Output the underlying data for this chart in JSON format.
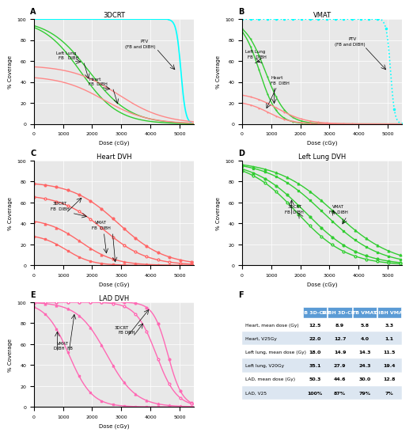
{
  "title_A": "3DCRT",
  "title_B": "VMAT",
  "title_C": "Heart DVH",
  "title_D": "Left Lung DVH",
  "title_E": "LAD DVH",
  "bg_color": "#e8e8e8",
  "colors": {
    "cyan": "#00FFFF",
    "green": "#00CC00",
    "red": "#FF6666",
    "pink": "#FF69B4"
  },
  "table_header_bg": "#5b9bd5",
  "table_header_text": "white",
  "table_row_bg1": "white",
  "table_row_bg2": "#dce6f1",
  "table_data": {
    "headers": [
      "",
      "FB 3D-CRT",
      "DIBH 3D-CRT",
      "FB VMAT",
      "DIBH VMAT"
    ],
    "rows": [
      [
        "Heart, mean dose (Gy)",
        "12.5",
        "8.9",
        "5.8",
        "3.3"
      ],
      [
        "Heart, V25Gy",
        "22.0",
        "12.7",
        "4.0",
        "1.1"
      ],
      [
        "Left lung, mean dose (Gy)",
        "18.0",
        "14.9",
        "14.3",
        "11.5"
      ],
      [
        "Left lung, V20Gy",
        "35.1",
        "27.9",
        "24.3",
        "19.4"
      ],
      [
        "LAD, mean dose (Gy)",
        "50.3",
        "44.6",
        "30.0",
        "12.8"
      ],
      [
        "LAD, V25",
        "100%",
        "87%",
        "79%",
        "7%"
      ]
    ]
  }
}
